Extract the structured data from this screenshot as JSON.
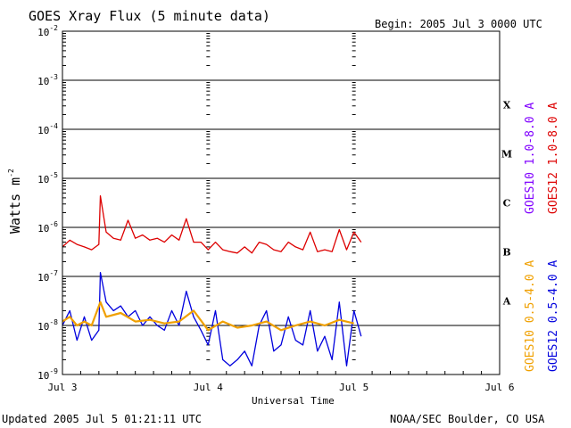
{
  "chart_data": {
    "type": "line",
    "title": "GOES Xray Flux (5 minute data)",
    "begin": "Begin:  2005 Jul 3 0000 UTC",
    "xlabel": "Universal Time",
    "ylabel": "Watts m",
    "ylabel_sup": "-2",
    "yscale": "log",
    "ylim": [
      1e-09,
      0.01
    ],
    "xlim": [
      0,
      3
    ],
    "x_ticks": [
      {
        "x": 0,
        "label": "Jul 3"
      },
      {
        "x": 1,
        "label": "Jul 4"
      },
      {
        "x": 2,
        "label": "Jul 5"
      },
      {
        "x": 3,
        "label": "Jul 6"
      }
    ],
    "y_ticks": [
      {
        "exp": -9,
        "base": "10",
        "sup": "-9"
      },
      {
        "exp": -8,
        "base": "10",
        "sup": "-8"
      },
      {
        "exp": -7,
        "base": "10",
        "sup": "-7"
      },
      {
        "exp": -6,
        "base": "10",
        "sup": "-6"
      },
      {
        "exp": -5,
        "base": "10",
        "sup": "-5"
      },
      {
        "exp": -4,
        "base": "10",
        "sup": "-4"
      },
      {
        "exp": -3,
        "base": "10",
        "sup": "-3"
      },
      {
        "exp": -2,
        "base": "10",
        "sup": "-2"
      }
    ],
    "flare_classes": [
      {
        "label": "A",
        "exp": -7.5
      },
      {
        "label": "B",
        "exp": -6.5
      },
      {
        "label": "C",
        "exp": -5.5
      },
      {
        "label": "M",
        "exp": -4.5
      },
      {
        "label": "X",
        "exp": -3.5
      }
    ],
    "series": [
      {
        "name": "GOES12 1.0-8.0 A",
        "color": "#dd0000",
        "x": [
          0,
          0.05,
          0.1,
          0.15,
          0.2,
          0.25,
          0.26,
          0.3,
          0.35,
          0.4,
          0.45,
          0.5,
          0.55,
          0.6,
          0.65,
          0.7,
          0.75,
          0.8,
          0.85,
          0.9,
          0.95,
          1.0,
          1.05,
          1.1,
          1.15,
          1.2,
          1.25,
          1.3,
          1.35,
          1.4,
          1.45,
          1.5,
          1.55,
          1.6,
          1.65,
          1.7,
          1.75,
          1.8,
          1.85,
          1.9,
          1.95,
          2.0,
          2.05
        ],
        "y": [
          4e-07,
          5.5e-07,
          4.5e-07,
          4e-07,
          3.5e-07,
          4.5e-07,
          4.4e-06,
          8e-07,
          6e-07,
          5.5e-07,
          1.4e-06,
          6e-07,
          7e-07,
          5.5e-07,
          6e-07,
          5e-07,
          7e-07,
          5.5e-07,
          1.5e-06,
          5e-07,
          5e-07,
          3.5e-07,
          5e-07,
          3.5e-07,
          3.2e-07,
          3e-07,
          4e-07,
          3e-07,
          5e-07,
          4.5e-07,
          3.5e-07,
          3.2e-07,
          5e-07,
          4e-07,
          3.5e-07,
          8e-07,
          3.2e-07,
          3.5e-07,
          3.2e-07,
          9e-07,
          3.5e-07,
          8e-07,
          5e-07
        ]
      },
      {
        "name": "GOES10 1.0-8.0 A",
        "color": "#8000ff",
        "x": [],
        "y": []
      },
      {
        "name": "GOES12 0.5-4.0 A",
        "color": "#0000dd",
        "x": [
          0,
          0.05,
          0.1,
          0.15,
          0.2,
          0.25,
          0.26,
          0.3,
          0.35,
          0.4,
          0.45,
          0.5,
          0.55,
          0.6,
          0.65,
          0.7,
          0.75,
          0.8,
          0.85,
          0.9,
          0.95,
          1.0,
          1.05,
          1.1,
          1.15,
          1.2,
          1.25,
          1.3,
          1.35,
          1.4,
          1.45,
          1.5,
          1.55,
          1.6,
          1.65,
          1.7,
          1.75,
          1.8,
          1.85,
          1.9,
          1.95,
          2.0,
          2.05
        ],
        "y": [
          1e-08,
          2e-08,
          5e-09,
          1.5e-08,
          5e-09,
          8e-09,
          1.2e-07,
          3e-08,
          2e-08,
          2.5e-08,
          1.5e-08,
          2e-08,
          1e-08,
          1.5e-08,
          1e-08,
          8e-09,
          2e-08,
          1e-08,
          5e-08,
          1.5e-08,
          8e-09,
          4e-09,
          2e-08,
          2e-09,
          1.5e-09,
          2e-09,
          3e-09,
          1.5e-09,
          1e-08,
          2e-08,
          3e-09,
          4e-09,
          1.5e-08,
          5e-09,
          4e-09,
          2e-08,
          3e-09,
          6e-09,
          2e-09,
          3e-08,
          1.5e-09,
          2e-08,
          6e-09
        ]
      },
      {
        "name": "GOES10 0.5-4.0 A",
        "color": "#f0a000",
        "x": [
          0,
          0.05,
          0.1,
          0.15,
          0.2,
          0.26,
          0.3,
          0.4,
          0.5,
          0.6,
          0.7,
          0.8,
          0.9,
          1.0,
          1.1,
          1.2,
          1.3,
          1.4,
          1.5,
          1.6,
          1.7,
          1.8,
          1.9,
          2.0
        ],
        "y": [
          1.2e-08,
          1.5e-08,
          1e-08,
          1.2e-08,
          1e-08,
          3e-08,
          1.5e-08,
          1.8e-08,
          1.2e-08,
          1.3e-08,
          1.1e-08,
          1.2e-08,
          2e-08,
          8e-09,
          1.2e-08,
          9e-09,
          1e-08,
          1.2e-08,
          8e-09,
          1e-08,
          1.2e-08,
          1e-08,
          1.3e-08,
          1.1e-08
        ]
      }
    ]
  },
  "footer": {
    "updated": "Updated 2005 Jul  5 01:21:11 UTC",
    "source": "NOAA/SEC Boulder, CO USA"
  }
}
